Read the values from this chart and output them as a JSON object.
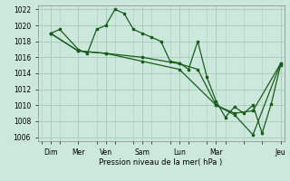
{
  "bg_color": "#cce8dc",
  "grid_color": "#aacfbf",
  "line_color": "#1a5c1a",
  "marker_color": "#1a5c1a",
  "xlabel": "Pression niveau de la mer( hPa )",
  "ylim": [
    1005.5,
    1022.5
  ],
  "yticks": [
    1006,
    1008,
    1010,
    1012,
    1014,
    1016,
    1018,
    1020,
    1022
  ],
  "xlim": [
    -0.2,
    13.2
  ],
  "xtick_positions": [
    0.5,
    2,
    3.5,
    5.5,
    7.5,
    9.5,
    13
  ],
  "xtick_labels": [
    "Dim",
    "Mer",
    "Ven",
    "Sam",
    "Lun",
    "Mar",
    "Jeu"
  ],
  "series1_x": [
    0.5,
    1.0,
    2.0,
    2.5,
    3.0,
    3.5,
    4.0,
    4.5,
    5.0,
    5.5,
    6.0,
    6.5,
    7.0,
    7.5,
    8.0,
    8.5,
    9.0,
    9.5,
    10.0,
    10.5,
    11.0,
    11.5,
    12.0,
    12.5,
    13.0
  ],
  "series1_y": [
    1019,
    1019.5,
    1017,
    1016.5,
    1019.5,
    1020,
    1022,
    1021.5,
    1019.5,
    1019,
    1018.5,
    1018,
    1015.5,
    1015.3,
    1014.5,
    1018.0,
    1013.5,
    1010.5,
    1008.5,
    1009.8,
    1009.0,
    1010,
    1006.5,
    1010.2,
    1015
  ],
  "series2_x": [
    0.5,
    2.0,
    3.5,
    5.5,
    7.5,
    8.5,
    9.5,
    10.5,
    11.5,
    13.0
  ],
  "series2_y": [
    1019,
    1016.8,
    1016.5,
    1016.0,
    1015.2,
    1014.5,
    1010.0,
    1009.0,
    1009.3,
    1015.2
  ],
  "series3_x": [
    0.5,
    2.0,
    3.5,
    5.5,
    7.5,
    9.5,
    10.5,
    11.5,
    13.0
  ],
  "series3_y": [
    1019,
    1016.8,
    1016.5,
    1015.5,
    1014.5,
    1010.0,
    1008.8,
    1006.3,
    1015.2
  ]
}
